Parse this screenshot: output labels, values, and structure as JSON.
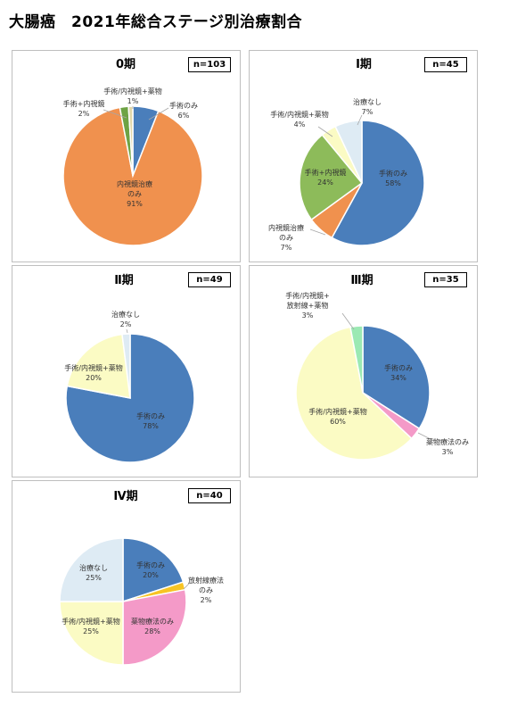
{
  "page_title": "大腸癌　2021年総合ステージ別治療割合",
  "colors": {
    "surgery": "#4a7ebb",
    "endoscopic": "#f0914e",
    "surgery_endoscopic": "#8dbb5a",
    "surgery_endoscopic_drug": "#fbfbc4",
    "no_treatment": "#deebf4",
    "drug_only": "#f49ac8",
    "radiation_only": "#f7c424",
    "surgery_endoscopic_radiation_drug": "#9be9b3",
    "surgery_endoscopic_small": "#6ea344",
    "surgery_endoscopic_drug_0": "#e1d7a9"
  },
  "chart_data": [
    {
      "type": "pie",
      "title": "0期",
      "n": "n=103",
      "slices": [
        {
          "label": "手術のみ",
          "value": 6,
          "pct": "6%",
          "color": "#4a7ebb"
        },
        {
          "label": "内視鏡治療のみ",
          "value": 91,
          "pct": "91%",
          "color": "#f0914e",
          "lines": [
            "内視鏡治療",
            "のみ"
          ]
        },
        {
          "label": "手術+内視鏡",
          "value": 2,
          "pct": "2%",
          "color": "#6ea344"
        },
        {
          "label": "手術/内視鏡+薬物",
          "value": 1,
          "pct": "1%",
          "color": "#e1d7a9"
        }
      ]
    },
    {
      "type": "pie",
      "title": "Ⅰ期",
      "n": "n=45",
      "slices": [
        {
          "label": "手術のみ",
          "value": 58,
          "pct": "58%",
          "color": "#4a7ebb"
        },
        {
          "label": "内視鏡治療のみ",
          "value": 7,
          "pct": "7%",
          "color": "#f0914e",
          "lines": [
            "内視鏡治療",
            "のみ"
          ]
        },
        {
          "label": "手術+内視鏡",
          "value": 24,
          "pct": "24%",
          "color": "#8dbb5a"
        },
        {
          "label": "手術/内視鏡+薬物",
          "value": 4,
          "pct": "4%",
          "color": "#fbfbc4"
        },
        {
          "label": "治療なし",
          "value": 7,
          "pct": "7%",
          "color": "#deebf4"
        }
      ]
    },
    {
      "type": "pie",
      "title": "Ⅱ期",
      "n": "n=49",
      "slices": [
        {
          "label": "手術のみ",
          "value": 78,
          "pct": "78%",
          "color": "#4a7ebb"
        },
        {
          "label": "手術/内視鏡+薬物",
          "value": 20,
          "pct": "20%",
          "color": "#fbfbc4"
        },
        {
          "label": "治療なし",
          "value": 2,
          "pct": "2%",
          "color": "#deebf4"
        }
      ]
    },
    {
      "type": "pie",
      "title": "Ⅲ期",
      "n": "n=35",
      "slices": [
        {
          "label": "手術のみ",
          "value": 34,
          "pct": "34%",
          "color": "#4a7ebb"
        },
        {
          "label": "薬物療法のみ",
          "value": 3,
          "pct": "3%",
          "color": "#f49ac8"
        },
        {
          "label": "手術/内視鏡+薬物",
          "value": 60,
          "pct": "60%",
          "color": "#fbfbc4"
        },
        {
          "label": "手術/内視鏡+放射線+薬物",
          "value": 3,
          "pct": "3%",
          "color": "#9be9b3",
          "lines": [
            "手術/内視鏡+",
            "放射線+薬物"
          ]
        }
      ]
    },
    {
      "type": "pie",
      "title": "Ⅳ期",
      "n": "n=40",
      "slices": [
        {
          "label": "手術のみ",
          "value": 20,
          "pct": "20%",
          "color": "#4a7ebb"
        },
        {
          "label": "放射線療法のみ",
          "value": 2,
          "pct": "2%",
          "color": "#f7c424",
          "lines": [
            "放射線療法",
            "のみ"
          ]
        },
        {
          "label": "薬物療法のみ",
          "value": 28,
          "pct": "28%",
          "color": "#f49ac8"
        },
        {
          "label": "手術/内視鏡+薬物",
          "value": 25,
          "pct": "25%",
          "color": "#fbfbc4"
        },
        {
          "label": "治療なし",
          "value": 25,
          "pct": "25%",
          "color": "#deebf4"
        }
      ]
    }
  ]
}
